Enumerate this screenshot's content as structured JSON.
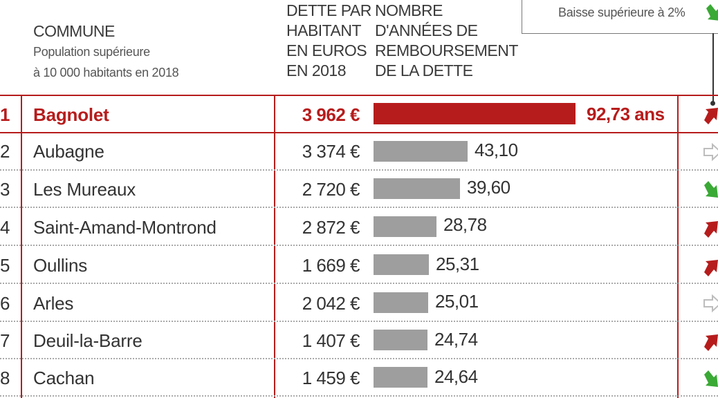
{
  "header": {
    "commune_title": "COMMUNE",
    "commune_sub1": "Population supérieure",
    "commune_sub2": "à 10 000 habitants en 2018",
    "debt_lines": [
      "DETTE PAR",
      "HABITANT",
      "EN EUROS",
      "EN 2018"
    ],
    "years_lines": [
      "NOMBRE",
      "D'ANNÉES DE",
      "REMBOURSEMENT",
      "DE LA DETTE"
    ]
  },
  "legend": {
    "decrease_label": "Baisse supérieure à 2%"
  },
  "colors": {
    "accent_red": "#b71c1c",
    "bar_grey": "#9e9e9e",
    "arrow_green": "#3aa935",
    "arrow_red": "#b71c1c",
    "arrow_neutral": "#bdbdbd"
  },
  "chart_data": {
    "type": "bar",
    "categories": [
      "Bagnolet",
      "Aubagne",
      "Les Mureaux",
      "Saint-Amand-Montrond",
      "Oullins",
      "Arles",
      "Deuil-la-Barre",
      "Cachan"
    ],
    "series": [
      {
        "values": [
          92.73,
          43.1,
          39.6,
          28.78,
          25.31,
          25.01,
          24.74,
          24.64
        ]
      }
    ]
  },
  "rows": [
    {
      "rank": "1",
      "name": "Bagnolet",
      "debt": "3 962 €",
      "years": "92,73 ans",
      "trend": "up-red"
    },
    {
      "rank": "2",
      "name": "Aubagne",
      "debt": "3 374 €",
      "years": "43,10",
      "trend": "neutral"
    },
    {
      "rank": "3",
      "name": "Les Mureaux",
      "debt": "2 720 €",
      "years": "39,60",
      "trend": "down-green"
    },
    {
      "rank": "4",
      "name": "Saint-Amand-Montrond",
      "debt": "2 872 €",
      "years": "28,78",
      "trend": "up-red"
    },
    {
      "rank": "5",
      "name": "Oullins",
      "debt": "1 669 €",
      "years": "25,31",
      "trend": "up-red"
    },
    {
      "rank": "6",
      "name": "Arles",
      "debt": "2 042 €",
      "years": "25,01",
      "trend": "neutral"
    },
    {
      "rank": "7",
      "name": "Deuil-la-Barre",
      "debt": "1 407 €",
      "years": "24,74",
      "trend": "up-red"
    },
    {
      "rank": "8",
      "name": "Cachan",
      "debt": "1 459 €",
      "years": "24,64",
      "trend": "down-green"
    }
  ]
}
